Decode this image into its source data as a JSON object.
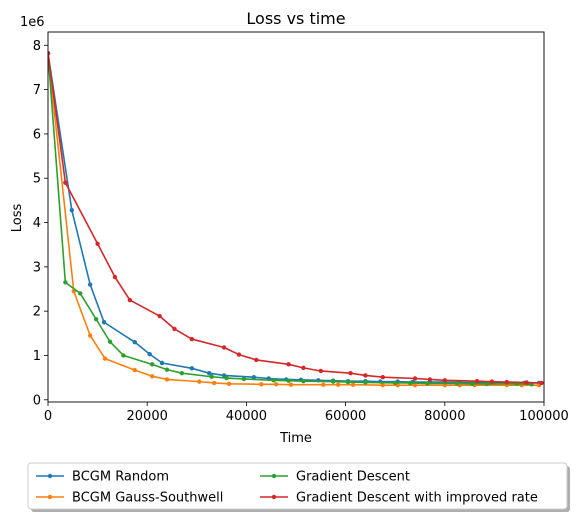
{
  "chart_data": {
    "type": "line",
    "title": "Loss vs time",
    "xlabel": "Time",
    "ylabel": "Loss",
    "y_offset_label": "1e6",
    "xlim": [
      0,
      100000
    ],
    "ylim": [
      -0.05,
      8.3
    ],
    "xticks": [
      0,
      20000,
      40000,
      60000,
      80000,
      100000
    ],
    "xtick_labels": [
      "0",
      "20000",
      "40000",
      "60000",
      "80000",
      "100000"
    ],
    "yticks": [
      0,
      1,
      2,
      3,
      4,
      5,
      6,
      7,
      8
    ],
    "ytick_labels": [
      "0",
      "1",
      "2",
      "3",
      "4",
      "5",
      "6",
      "7",
      "8"
    ],
    "grid": false,
    "legend_placement": "below plot, 2 columns",
    "series": [
      {
        "name": "BCGM Random",
        "color": "#1f77b4",
        "x": [
          0,
          4800,
          8500,
          11300,
          17500,
          20500,
          23000,
          29000,
          32500,
          35500,
          41500,
          44500,
          48000,
          51000,
          54500,
          57500,
          60500,
          64000,
          67000,
          70500,
          73500,
          77000,
          80000,
          83000,
          86500,
          89500,
          92500,
          96000,
          99000
        ],
        "y": [
          7.82,
          4.28,
          2.6,
          1.75,
          1.3,
          1.03,
          0.83,
          0.71,
          0.6,
          0.55,
          0.51,
          0.48,
          0.46,
          0.45,
          0.44,
          0.43,
          0.42,
          0.42,
          0.41,
          0.41,
          0.4,
          0.4,
          0.4,
          0.39,
          0.39,
          0.39,
          0.38,
          0.38,
          0.38
        ]
      },
      {
        "name": "BCGM Gauss-Southwell",
        "color": "#ff7f0e",
        "x": [
          0,
          5200,
          8500,
          11500,
          17500,
          21000,
          24000,
          30500,
          33500,
          36500,
          43000,
          46000,
          49000,
          55500,
          58500,
          61500,
          67500,
          70500,
          74000,
          80000,
          83000,
          86000,
          92500,
          95500,
          99000
        ],
        "y": [
          7.82,
          2.45,
          1.45,
          0.93,
          0.67,
          0.53,
          0.46,
          0.41,
          0.38,
          0.36,
          0.35,
          0.35,
          0.34,
          0.34,
          0.34,
          0.34,
          0.33,
          0.33,
          0.33,
          0.33,
          0.33,
          0.33,
          0.33,
          0.33,
          0.33
        ]
      },
      {
        "name": "Gradient Descent",
        "color": "#2ca02c",
        "x": [
          0,
          3500,
          6500,
          9700,
          12500,
          15200,
          21000,
          24000,
          27000,
          33000,
          36000,
          39500,
          45500,
          48500,
          51500,
          57500,
          60500,
          64000,
          70000,
          73000,
          76500,
          82500,
          85500,
          88500,
          94500,
          97500
        ],
        "y": [
          7.82,
          2.65,
          2.4,
          1.82,
          1.31,
          1.0,
          0.8,
          0.68,
          0.6,
          0.52,
          0.49,
          0.47,
          0.44,
          0.43,
          0.42,
          0.41,
          0.4,
          0.39,
          0.38,
          0.38,
          0.37,
          0.37,
          0.36,
          0.36,
          0.36,
          0.35
        ]
      },
      {
        "name": "Gradient Descent with improved rate",
        "color": "#d62728",
        "x": [
          0,
          3500,
          10000,
          13500,
          16500,
          22500,
          25500,
          29000,
          35500,
          38500,
          42000,
          48500,
          51500,
          55000,
          61000,
          64000,
          67500,
          74000,
          77000,
          80000,
          86500,
          89500,
          92500,
          96500,
          99500
        ],
        "y": [
          7.82,
          4.9,
          3.52,
          2.77,
          2.25,
          1.89,
          1.6,
          1.37,
          1.18,
          1.02,
          0.9,
          0.8,
          0.72,
          0.65,
          0.6,
          0.55,
          0.51,
          0.48,
          0.46,
          0.44,
          0.42,
          0.41,
          0.4,
          0.39,
          0.38
        ]
      }
    ]
  }
}
